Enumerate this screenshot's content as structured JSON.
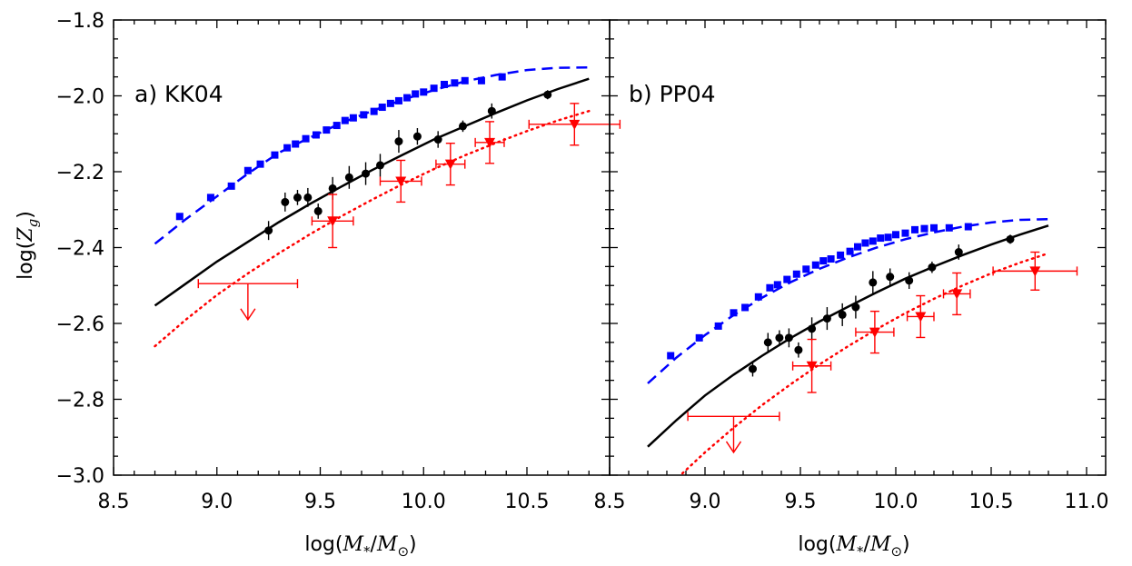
{
  "figure": {
    "xlabel_prefix": "log(",
    "xlabel_m": "M",
    "xlabel_sub": "*",
    "xlabel_slash": "/",
    "xlabel_msun": "M",
    "xlabel_sun_sub": "⊙",
    "xlabel_suffix": ")",
    "ylabel_prefix": "log(",
    "ylabel_z": "Z",
    "ylabel_sub": "g",
    "ylabel_suffix": ")"
  },
  "colors": {
    "blue": "#0000ff",
    "black": "#000000",
    "red": "#ff0000"
  },
  "chart_data": [
    {
      "type": "scatter",
      "panel_label": "a) KK04",
      "xlim": [
        8.5,
        10.9
      ],
      "ylim": [
        -3.0,
        -1.8
      ],
      "xticks": [
        8.5,
        9.0,
        9.5,
        10.0,
        10.5
      ],
      "xtick_labels": [
        "8.5",
        "9.0",
        "9.5",
        "10.0",
        "10.5"
      ],
      "yticks": [
        -3.0,
        -2.8,
        -2.6,
        -2.4,
        -2.2,
        -2.0,
        -1.8
      ],
      "ytick_labels": [
        "−3.0",
        "−2.8",
        "−2.6",
        "−2.4",
        "−2.2",
        "−2.0",
        "−1.8"
      ],
      "series": [
        {
          "kind": "points",
          "marker": "square",
          "color": "#0000ff",
          "x": [
            8.82,
            8.97,
            9.07,
            9.15,
            9.21,
            9.28,
            9.34,
            9.38,
            9.43,
            9.48,
            9.53,
            9.58,
            9.62,
            9.66,
            9.71,
            9.76,
            9.8,
            9.84,
            9.88,
            9.92,
            9.96,
            10.0,
            10.05,
            10.1,
            10.15,
            10.2,
            10.28,
            10.38
          ],
          "y": [
            -2.318,
            -2.268,
            -2.238,
            -2.197,
            -2.18,
            -2.156,
            -2.137,
            -2.127,
            -2.113,
            -2.103,
            -2.09,
            -2.078,
            -2.065,
            -2.058,
            -2.05,
            -2.041,
            -2.03,
            -2.02,
            -2.013,
            -2.005,
            -1.995,
            -1.99,
            -1.98,
            -1.97,
            -1.966,
            -1.96,
            -1.96,
            -1.95
          ]
        },
        {
          "kind": "curve",
          "style": "dashed",
          "color": "#0000ff",
          "x": [
            8.7,
            8.85,
            9.0,
            9.15,
            9.3,
            9.45,
            9.6,
            9.75,
            9.9,
            10.05,
            10.2,
            10.35,
            10.5,
            10.65,
            10.8
          ],
          "y": [
            -2.39,
            -2.325,
            -2.265,
            -2.205,
            -2.15,
            -2.11,
            -2.072,
            -2.04,
            -2.01,
            -1.985,
            -1.962,
            -1.945,
            -1.932,
            -1.926,
            -1.925
          ]
        },
        {
          "kind": "points",
          "marker": "circle",
          "color": "#000000",
          "x": [
            9.25,
            9.33,
            9.39,
            9.44,
            9.49,
            9.56,
            9.64,
            9.72,
            9.79,
            9.88,
            9.97,
            10.07,
            10.19,
            10.33,
            10.6
          ],
          "y": [
            -2.355,
            -2.28,
            -2.268,
            -2.268,
            -2.304,
            -2.244,
            -2.215,
            -2.205,
            -2.183,
            -2.12,
            -2.107,
            -2.115,
            -2.08,
            -2.04,
            -1.997
          ],
          "yerr": [
            0.025,
            0.025,
            0.02,
            0.025,
            0.02,
            0.03,
            0.03,
            0.03,
            0.03,
            0.03,
            0.022,
            0.022,
            0.015,
            0.02,
            0.012
          ]
        },
        {
          "kind": "curve",
          "style": "solid",
          "color": "#000000",
          "x": [
            8.7,
            8.85,
            9.0,
            9.15,
            9.3,
            9.45,
            9.6,
            9.75,
            9.9,
            10.05,
            10.2,
            10.35,
            10.5,
            10.65,
            10.8
          ],
          "y": [
            -2.553,
            -2.495,
            -2.437,
            -2.385,
            -2.333,
            -2.285,
            -2.24,
            -2.196,
            -2.155,
            -2.115,
            -2.08,
            -2.045,
            -2.012,
            -1.982,
            -1.955
          ]
        },
        {
          "kind": "points",
          "marker": "triangle-down",
          "color": "#ff0000",
          "x": [
            9.56,
            9.89,
            10.13,
            10.32,
            10.73
          ],
          "y": [
            -2.33,
            -2.225,
            -2.18,
            -2.123,
            -2.075
          ],
          "yerr": [
            0.07,
            0.055,
            0.055,
            0.055,
            0.055
          ],
          "xerr": [
            0.1,
            0.1,
            0.07,
            0.07,
            0.22
          ]
        },
        {
          "kind": "upper_limit",
          "color": "#ff0000",
          "x": 9.15,
          "y": -2.495,
          "xerr": 0.24,
          "arrow_to": -2.59
        },
        {
          "kind": "curve",
          "style": "dotted",
          "color": "#ff0000",
          "x": [
            8.7,
            8.85,
            9.0,
            9.15,
            9.3,
            9.45,
            9.6,
            9.75,
            9.9,
            10.05,
            10.2,
            10.35,
            10.5,
            10.65,
            10.8
          ],
          "y": [
            -2.66,
            -2.59,
            -2.525,
            -2.468,
            -2.415,
            -2.365,
            -2.318,
            -2.274,
            -2.232,
            -2.193,
            -2.157,
            -2.124,
            -2.093,
            -2.065,
            -2.04
          ]
        }
      ]
    },
    {
      "type": "scatter",
      "panel_label": "b) PP04",
      "xlim": [
        8.5,
        11.1
      ],
      "ylim": [
        -3.0,
        -1.8
      ],
      "xticks": [
        8.5,
        9.0,
        9.5,
        10.0,
        10.5,
        11.0
      ],
      "xtick_labels": [
        "8.5",
        "9.0",
        "9.5",
        "10.0",
        "10.5",
        "11.0"
      ],
      "yticks": [
        -3.0,
        -2.8,
        -2.6,
        -2.4,
        -2.2,
        -2.0,
        -1.8
      ],
      "series": [
        {
          "kind": "points",
          "marker": "square",
          "color": "#0000ff",
          "x": [
            8.82,
            8.97,
            9.07,
            9.15,
            9.21,
            9.28,
            9.34,
            9.38,
            9.43,
            9.48,
            9.53,
            9.58,
            9.62,
            9.66,
            9.71,
            9.76,
            9.8,
            9.84,
            9.88,
            9.92,
            9.96,
            10.0,
            10.05,
            10.1,
            10.15,
            10.2,
            10.28,
            10.38
          ],
          "y": [
            -2.685,
            -2.638,
            -2.607,
            -2.572,
            -2.558,
            -2.53,
            -2.506,
            -2.498,
            -2.484,
            -2.47,
            -2.457,
            -2.446,
            -2.435,
            -2.43,
            -2.42,
            -2.41,
            -2.398,
            -2.388,
            -2.383,
            -2.375,
            -2.373,
            -2.366,
            -2.362,
            -2.353,
            -2.35,
            -2.348,
            -2.348,
            -2.345
          ]
        },
        {
          "kind": "curve",
          "style": "dashed",
          "color": "#0000ff",
          "x": [
            8.7,
            8.85,
            9.0,
            9.15,
            9.3,
            9.45,
            9.6,
            9.75,
            9.9,
            10.05,
            10.2,
            10.35,
            10.5,
            10.65,
            10.8
          ],
          "y": [
            -2.758,
            -2.69,
            -2.631,
            -2.578,
            -2.532,
            -2.491,
            -2.456,
            -2.426,
            -2.4,
            -2.378,
            -2.36,
            -2.345,
            -2.334,
            -2.327,
            -2.325
          ]
        },
        {
          "kind": "points",
          "marker": "circle",
          "color": "#000000",
          "x": [
            9.25,
            9.33,
            9.39,
            9.44,
            9.49,
            9.56,
            9.64,
            9.72,
            9.79,
            9.88,
            9.97,
            10.07,
            10.19,
            10.33,
            10.6
          ],
          "y": [
            -2.72,
            -2.65,
            -2.638,
            -2.638,
            -2.67,
            -2.614,
            -2.587,
            -2.577,
            -2.557,
            -2.492,
            -2.477,
            -2.487,
            -2.452,
            -2.412,
            -2.378
          ],
          "yerr": [
            0.02,
            0.025,
            0.02,
            0.025,
            0.02,
            0.03,
            0.03,
            0.03,
            0.03,
            0.03,
            0.022,
            0.022,
            0.015,
            0.02,
            0.012
          ]
        },
        {
          "kind": "curve",
          "style": "solid",
          "color": "#000000",
          "x": [
            8.7,
            8.85,
            9.0,
            9.15,
            9.3,
            9.45,
            9.6,
            9.75,
            9.9,
            10.05,
            10.2,
            10.35,
            10.5,
            10.65,
            10.8
          ],
          "y": [
            -2.925,
            -2.855,
            -2.79,
            -2.735,
            -2.685,
            -2.638,
            -2.595,
            -2.556,
            -2.518,
            -2.482,
            -2.45,
            -2.42,
            -2.392,
            -2.366,
            -2.342
          ]
        },
        {
          "kind": "points",
          "marker": "triangle-down",
          "color": "#ff0000",
          "x": [
            9.56,
            9.89,
            10.13,
            10.32,
            10.73
          ],
          "y": [
            -2.712,
            -2.623,
            -2.582,
            -2.522,
            -2.462
          ],
          "yerr": [
            0.07,
            0.055,
            0.055,
            0.055,
            0.05
          ],
          "xerr": [
            0.1,
            0.1,
            0.07,
            0.07,
            0.22
          ]
        },
        {
          "kind": "upper_limit",
          "color": "#ff0000",
          "x": 9.15,
          "y": -2.845,
          "xerr": 0.24,
          "arrow_to": -2.94
        },
        {
          "kind": "curve",
          "style": "dotted",
          "color": "#ff0000",
          "x": [
            8.7,
            8.85,
            9.0,
            9.15,
            9.3,
            9.45,
            9.6,
            9.75,
            9.9,
            10.05,
            10.2,
            10.35,
            10.5,
            10.65,
            10.8
          ],
          "y": [
            -3.08,
            -3.01,
            -2.94,
            -2.875,
            -2.815,
            -2.76,
            -2.708,
            -2.66,
            -2.615,
            -2.573,
            -2.535,
            -2.5,
            -2.468,
            -2.44,
            -2.415
          ]
        }
      ]
    }
  ]
}
